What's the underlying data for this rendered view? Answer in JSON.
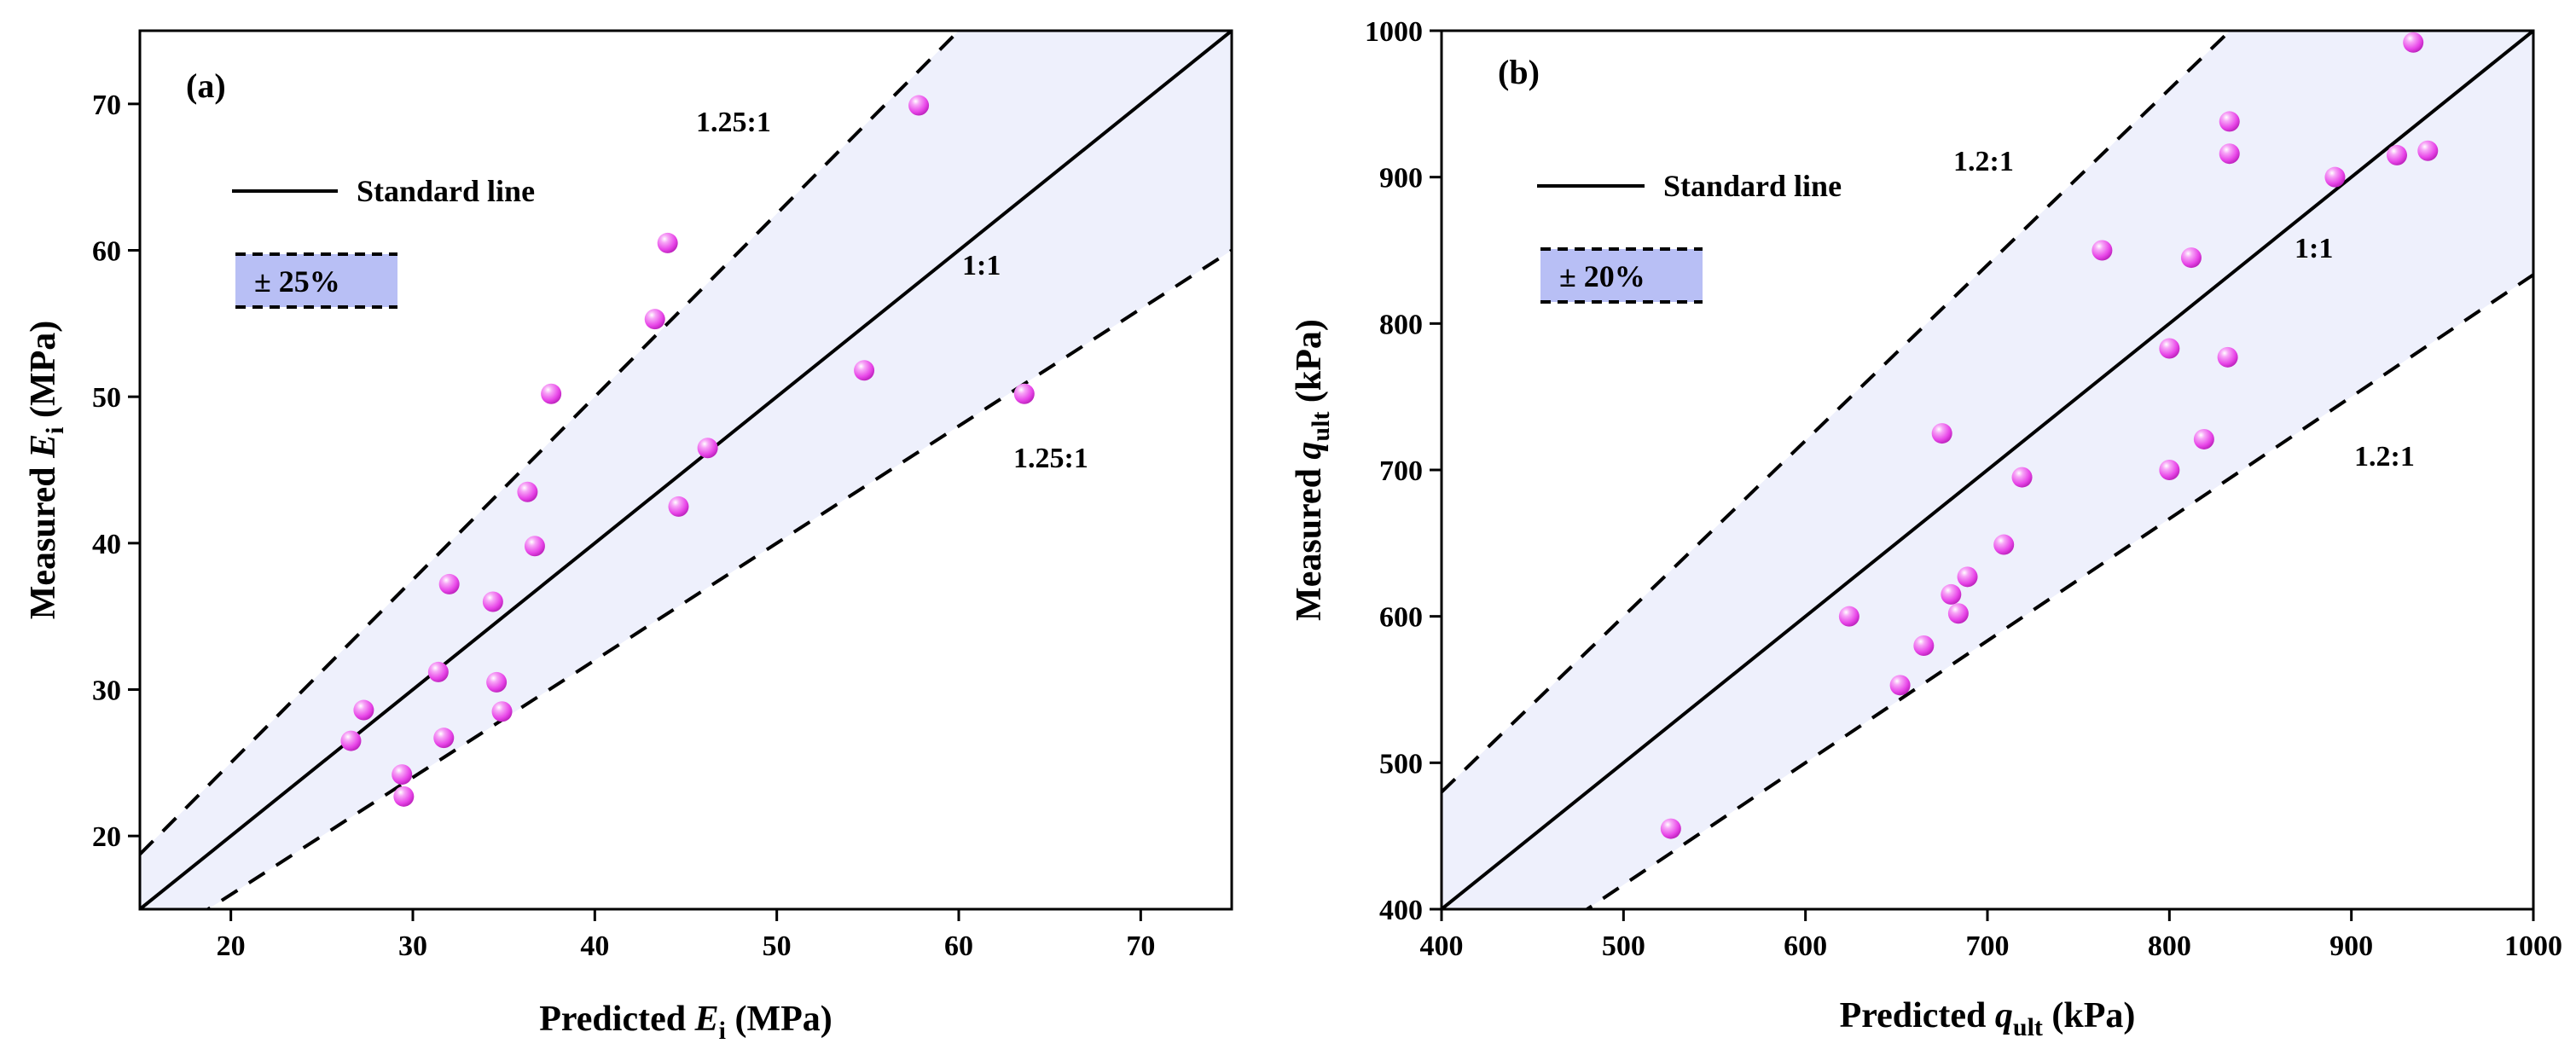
{
  "chart_data": [
    {
      "type": "scatter",
      "panel_label": "(a)",
      "xlabel": {
        "prefix": "Predicted ",
        "var": "E",
        "sub": "i",
        "unit": " (MPa)"
      },
      "ylabel": {
        "prefix": "Measured ",
        "var": "E",
        "sub": "i",
        "unit": " (MPa)"
      },
      "xlim": [
        15,
        75
      ],
      "ylim": [
        15,
        75
      ],
      "xticks": [
        20,
        30,
        40,
        50,
        60,
        70
      ],
      "yticks": [
        20,
        30,
        40,
        50,
        60,
        70
      ],
      "legend": {
        "line_label": "Standard line",
        "band_label": "± 25%"
      },
      "band_factor": 1.25,
      "band_colors": {
        "fill": "#eef0fc",
        "legend_fill": "#b8bff5"
      },
      "marker_color": "#ee55ee",
      "annotations": {
        "upper": "1.25:1",
        "center": "1:1",
        "lower": "1.25:1"
      },
      "points": [
        {
          "x": 26.6,
          "y": 26.5
        },
        {
          "x": 27.3,
          "y": 28.6
        },
        {
          "x": 29.4,
          "y": 24.2
        },
        {
          "x": 29.5,
          "y": 22.7
        },
        {
          "x": 31.4,
          "y": 31.2
        },
        {
          "x": 31.7,
          "y": 26.7
        },
        {
          "x": 32.0,
          "y": 37.2
        },
        {
          "x": 34.4,
          "y": 36.0
        },
        {
          "x": 34.6,
          "y": 30.5
        },
        {
          "x": 34.9,
          "y": 28.5
        },
        {
          "x": 36.3,
          "y": 43.5
        },
        {
          "x": 36.7,
          "y": 39.8
        },
        {
          "x": 37.6,
          "y": 50.2
        },
        {
          "x": 43.3,
          "y": 55.3
        },
        {
          "x": 44.0,
          "y": 60.5
        },
        {
          "x": 44.6,
          "y": 42.5
        },
        {
          "x": 46.2,
          "y": 46.5
        },
        {
          "x": 54.8,
          "y": 51.8
        },
        {
          "x": 57.8,
          "y": 69.9
        },
        {
          "x": 63.6,
          "y": 50.2
        }
      ]
    },
    {
      "type": "scatter",
      "panel_label": "(b)",
      "xlabel": {
        "prefix": "Predicted ",
        "var": "q",
        "sub": "ult",
        "unit": " (kPa)"
      },
      "ylabel": {
        "prefix": "Measured ",
        "var": "q",
        "sub": "ult",
        "unit": " (kPa)"
      },
      "xlim": [
        400,
        1000
      ],
      "ylim": [
        400,
        1000
      ],
      "xticks": [
        400,
        500,
        600,
        700,
        800,
        900,
        1000
      ],
      "yticks": [
        400,
        500,
        600,
        700,
        800,
        900,
        1000
      ],
      "legend": {
        "line_label": "Standard line",
        "band_label": "± 20%"
      },
      "band_factor": 1.2,
      "band_colors": {
        "fill": "#eef0fc",
        "legend_fill": "#b8bff5"
      },
      "marker_color": "#ee55ee",
      "annotations": {
        "upper": "1.2:1",
        "center": "1:1",
        "lower": "1.2:1"
      },
      "points": [
        {
          "x": 526,
          "y": 455
        },
        {
          "x": 624,
          "y": 600
        },
        {
          "x": 652,
          "y": 553
        },
        {
          "x": 665,
          "y": 580
        },
        {
          "x": 675,
          "y": 725
        },
        {
          "x": 680,
          "y": 615
        },
        {
          "x": 684,
          "y": 602
        },
        {
          "x": 689,
          "y": 627
        },
        {
          "x": 709,
          "y": 649
        },
        {
          "x": 719,
          "y": 695
        },
        {
          "x": 763,
          "y": 850
        },
        {
          "x": 800,
          "y": 700
        },
        {
          "x": 800,
          "y": 783
        },
        {
          "x": 812,
          "y": 845
        },
        {
          "x": 819,
          "y": 721
        },
        {
          "x": 832,
          "y": 777
        },
        {
          "x": 833,
          "y": 916
        },
        {
          "x": 833,
          "y": 938
        },
        {
          "x": 891,
          "y": 900
        },
        {
          "x": 925,
          "y": 915
        },
        {
          "x": 934,
          "y": 992
        },
        {
          "x": 942,
          "y": 918
        }
      ]
    }
  ]
}
